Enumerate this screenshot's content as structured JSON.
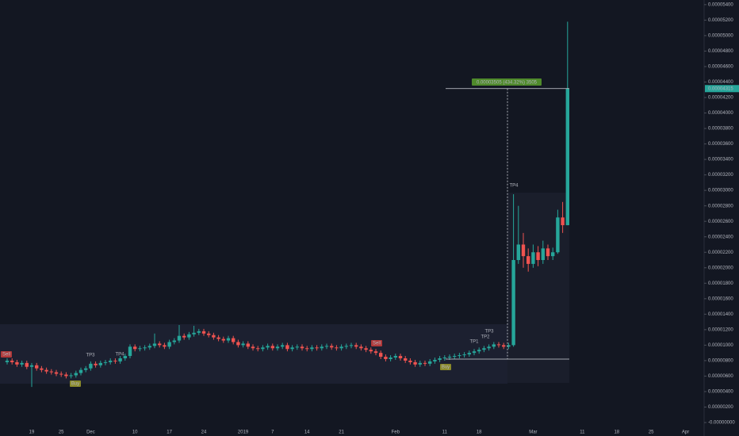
{
  "chart_data": {
    "type": "candlestick",
    "categories": [
      null,
      null,
      null,
      null,
      null,
      "19",
      null,
      null,
      null,
      null,
      null,
      "25",
      null,
      null,
      null,
      null,
      null,
      "Dec",
      null,
      null,
      null,
      null,
      null,
      null,
      null,
      null,
      "10",
      null,
      null,
      null,
      null,
      null,
      null,
      "17",
      null,
      null,
      null,
      null,
      null,
      null,
      "24",
      null,
      null,
      null,
      null,
      null,
      null,
      null,
      "2019",
      null,
      null,
      null,
      null,
      null,
      "7",
      null,
      null,
      null,
      null,
      null,
      null,
      "14",
      null,
      null,
      null,
      null,
      null,
      null,
      "21",
      null,
      null,
      null,
      null,
      null,
      null,
      null,
      null,
      null,
      null,
      "Feb",
      null,
      null,
      null,
      null,
      null,
      null,
      null,
      null,
      null,
      "11",
      null,
      null,
      null,
      null,
      null,
      null,
      "18",
      null,
      null,
      null,
      null,
      null,
      null,
      null,
      null,
      null,
      null,
      "Mar",
      null,
      null,
      null,
      null,
      null,
      null,
      null,
      null,
      null,
      "11",
      null,
      null,
      null,
      null,
      null,
      null,
      "18",
      null,
      null,
      null,
      null,
      null,
      null,
      "25",
      null,
      null,
      null,
      null,
      null,
      null,
      "Apr"
    ],
    "open": [
      7.8e-06,
      8e-06,
      7.8e-06,
      7.5e-06,
      7.7e-06,
      7.2e-06,
      7.4e-06,
      7e-06,
      6.8e-06,
      6.6e-06,
      6.5e-06,
      6.3e-06,
      6.2e-06,
      6e-06,
      6.1e-06,
      6.4e-06,
      6.8e-06,
      7e-06,
      7.6e-06,
      7.4e-06,
      7.7e-06,
      7.8e-06,
      8e-06,
      7.9e-06,
      8.3e-06,
      8.6e-06,
      9.8e-06,
      9.5e-06,
      9.6e-06,
      9.7e-06,
      9.9e-06,
      1.02e-05,
      1e-05,
      9.8e-06,
      1.04e-05,
      1.06e-05,
      1.12e-05,
      1.1e-05,
      1.14e-05,
      1.16e-05,
      1.18e-05,
      1.15e-05,
      1.13e-05,
      1.1e-05,
      1.08e-05,
      1.06e-05,
      1.09e-05,
      1.04e-05,
      1e-05,
      1.02e-05,
      9.8e-06,
      9.6e-06,
      9.5e-06,
      9.7e-06,
      9.9e-06,
      9.6e-06,
      9.8e-06,
      1e-05,
      9.5e-06,
      9.7e-06,
      9.8e-06,
      9.6e-06,
      9.5e-06,
      9.7e-06,
      9.6e-06,
      9.8e-06,
      9.9e-06,
      9.7e-06,
      9.6e-06,
      9.8e-06,
      9.9e-06,
      1e-05,
      9.8e-06,
      9.6e-06,
      9.4e-06,
      9.2e-06,
      9e-06,
      8.5e-06,
      8.2e-06,
      8.4e-06,
      8.6e-06,
      8.3e-06,
      8e-06,
      7.8e-06,
      7.5e-06,
      7.7e-06,
      7.6e-06,
      7.9e-06,
      8.1e-06,
      8.3e-06,
      8.4e-06,
      8.5e-06,
      8.6e-06,
      8.7e-06,
      8.8e-06,
      9e-06,
      9.2e-06,
      9.4e-06,
      9.6e-06,
      9.8e-06,
      1.01e-05,
      1e-05,
      9.8e-06,
      1e-05,
      2.1e-05,
      2.3e-05,
      2.15e-05,
      2.05e-05,
      2.2e-05,
      2.1e-05,
      2.25e-05,
      2.15e-05,
      2.2e-05,
      2.65e-05,
      2.55e-05,
      null,
      null,
      null,
      null,
      null,
      null,
      null,
      null,
      null,
      null,
      null,
      null,
      null,
      null,
      null,
      null,
      null,
      null,
      null,
      null,
      null,
      null,
      null,
      null
    ],
    "high": [
      8.3e-06,
      8.3e-06,
      8.1e-06,
      8e-06,
      8e-06,
      7.7e-06,
      7.7e-06,
      7.3e-06,
      7.1e-06,
      6.9e-06,
      6.8e-06,
      6.6e-06,
      6.5e-06,
      6.4e-06,
      6.7e-06,
      7.1e-06,
      7.3e-06,
      7.9e-06,
      7.9e-06,
      8e-06,
      8.1e-06,
      8.3e-06,
      8.3e-06,
      8.6e-06,
      8.9e-06,
      1.01e-05,
      1.01e-05,
      9.9e-06,
      1e-05,
      1.02e-05,
      1.15e-05,
      1.05e-05,
      1.03e-05,
      1.07e-05,
      1.09e-05,
      1.26e-05,
      1.15e-05,
      1.17e-05,
      1.25e-05,
      1.21e-05,
      1.21e-05,
      1.18e-05,
      1.16e-05,
      1.13e-05,
      1.11e-05,
      1.12e-05,
      1.12e-05,
      1.07e-05,
      1.05e-05,
      1.05e-05,
      1.01e-05,
      9.9e-06,
      1e-05,
      1.02e-05,
      1.02e-05,
      1.01e-05,
      1.03e-05,
      1.03e-05,
      1e-05,
      1.01e-05,
      1.01e-05,
      9.9e-06,
      1e-05,
      1e-05,
      1.01e-05,
      1.02e-05,
      1.02e-05,
      1e-05,
      1.01e-05,
      1.02e-05,
      1.03e-05,
      1.03e-05,
      1.01e-05,
      9.9e-06,
      9.7e-06,
      9.5e-06,
      9.3e-06,
      8.8e-06,
      8.7e-06,
      8.9e-06,
      8.9e-06,
      8.6e-06,
      8.3e-06,
      8.1e-06,
      8e-06,
      8e-06,
      8.2e-06,
      8.4e-06,
      8.6e-06,
      8.7e-06,
      8.8e-06,
      8.9e-06,
      9e-06,
      9.1e-06,
      9.3e-06,
      9.5e-06,
      9.7e-06,
      9.9e-06,
      1.01e-05,
      1.04e-05,
      1.04e-05,
      1.03e-05,
      1.03e-05,
      2.95e-05,
      2.8e-05,
      2.45e-05,
      2.25e-05,
      2.3e-05,
      2.28e-05,
      2.35e-05,
      2.3e-05,
      2.26e-05,
      2.75e-05,
      2.85e-05,
      5.18e-05,
      null,
      null,
      null,
      null,
      null,
      null,
      null,
      null,
      null,
      null,
      null,
      null,
      null,
      null,
      null,
      null,
      null,
      null,
      null,
      null,
      null,
      null,
      null,
      null
    ],
    "low": [
      7.5e-06,
      7.5e-06,
      7.2e-06,
      7.2e-06,
      6.9e-06,
      4.6e-06,
      6.7e-06,
      6.5e-06,
      6.3e-06,
      6.2e-06,
      6e-06,
      5.9e-06,
      5.7e-06,
      5.7e-06,
      5.8e-06,
      6.1e-06,
      6.5e-06,
      6.7e-06,
      7.1e-06,
      7.1e-06,
      7.4e-06,
      7.5e-06,
      7.6e-06,
      7.6e-06,
      8e-06,
      8.3e-06,
      9.2e-06,
      9.2e-06,
      9.3e-06,
      9.4e-06,
      9.6e-06,
      9.7e-06,
      9.5e-06,
      9.5e-06,
      1.01e-05,
      1.03e-05,
      1.07e-05,
      1.07e-05,
      1.11e-05,
      1.13e-05,
      1.12e-05,
      1.1e-05,
      1.07e-05,
      1.05e-05,
      1.03e-05,
      1.03e-05,
      1.01e-05,
      9.7e-06,
      9.7e-06,
      9.5e-06,
      9.3e-06,
      9.2e-06,
      9.2e-06,
      9.4e-06,
      9.3e-06,
      9.3e-06,
      9.5e-06,
      9.2e-06,
      9.2e-06,
      9.4e-06,
      9.3e-06,
      9.2e-06,
      9.2e-06,
      9.3e-06,
      9.3e-06,
      9.5e-06,
      9.4e-06,
      9.3e-06,
      9.3e-06,
      9.5e-06,
      9.6e-06,
      9.5e-06,
      9.3e-06,
      9.1e-06,
      8.9e-06,
      8.7e-06,
      8.2e-06,
      7.9e-06,
      7.9e-06,
      8.1e-06,
      8e-06,
      7.7e-06,
      7.5e-06,
      7.2e-06,
      7.2e-06,
      7.3e-06,
      7.3e-06,
      7.6e-06,
      7.8e-06,
      8e-06,
      8.1e-06,
      8.2e-06,
      8.3e-06,
      8.4e-06,
      8.5e-06,
      8.7e-06,
      8.9e-06,
      9.1e-06,
      9.3e-06,
      9.5e-06,
      9.7e-06,
      9.5e-06,
      9.5e-06,
      9.8e-06,
      2.05e-05,
      2e-05,
      1.95e-05,
      2e-05,
      2.02e-05,
      2.05e-05,
      2.1e-05,
      2.1e-05,
      2.18e-05,
      2.45e-05,
      2.55e-05,
      null,
      null,
      null,
      null,
      null,
      null,
      null,
      null,
      null,
      null,
      null,
      null,
      null,
      null,
      null,
      null,
      null,
      null,
      null,
      null,
      null,
      null,
      null,
      null
    ],
    "close": [
      8e-06,
      7.8e-06,
      7.5e-06,
      7.7e-06,
      7.2e-06,
      7.4e-06,
      7e-06,
      6.8e-06,
      6.6e-06,
      6.5e-06,
      6.3e-06,
      6.2e-06,
      6e-06,
      6.1e-06,
      6.4e-06,
      6.8e-06,
      7e-06,
      7.6e-06,
      7.4e-06,
      7.7e-06,
      7.8e-06,
      8e-06,
      7.9e-06,
      8.3e-06,
      8.6e-06,
      9.8e-06,
      9.5e-06,
      9.6e-06,
      9.7e-06,
      9.9e-06,
      1.02e-05,
      1e-05,
      9.8e-06,
      1.04e-05,
      1.06e-05,
      1.12e-05,
      1.1e-05,
      1.14e-05,
      1.16e-05,
      1.18e-05,
      1.15e-05,
      1.13e-05,
      1.1e-05,
      1.08e-05,
      1.06e-05,
      1.09e-05,
      1.04e-05,
      1e-05,
      1.02e-05,
      9.8e-06,
      9.6e-06,
      9.5e-06,
      9.7e-06,
      9.9e-06,
      9.6e-06,
      9.8e-06,
      1e-05,
      9.5e-06,
      9.7e-06,
      9.8e-06,
      9.6e-06,
      9.5e-06,
      9.7e-06,
      9.6e-06,
      9.8e-06,
      9.9e-06,
      9.7e-06,
      9.6e-06,
      9.8e-06,
      9.9e-06,
      1e-05,
      9.8e-06,
      9.6e-06,
      9.4e-06,
      9.2e-06,
      9e-06,
      8.5e-06,
      8.2e-06,
      8.4e-06,
      8.6e-06,
      8.3e-06,
      8e-06,
      7.8e-06,
      7.5e-06,
      7.7e-06,
      7.6e-06,
      7.9e-06,
      8.1e-06,
      8.3e-06,
      8.4e-06,
      8.5e-06,
      8.6e-06,
      8.7e-06,
      8.8e-06,
      9e-06,
      9.2e-06,
      9.4e-06,
      9.6e-06,
      9.8e-06,
      1.01e-05,
      1e-05,
      9.8e-06,
      1e-05,
      2.1e-05,
      2.3e-05,
      2.15e-05,
      2.05e-05,
      2.2e-05,
      2.1e-05,
      2.25e-05,
      2.15e-05,
      2.2e-05,
      2.65e-05,
      2.55e-05,
      4.315e-05,
      null,
      null,
      null,
      null,
      null,
      null,
      null,
      null,
      null,
      null,
      null,
      null,
      null,
      null,
      null,
      null,
      null,
      null,
      null,
      null,
      null,
      null,
      null,
      null
    ],
    "up_color": "#26a69a",
    "down_color": "#ef5350",
    "ylim": [
      -1.74e-06,
      5.46e-05
    ],
    "yticks": [
      {
        "value": 5.4e-05,
        "label": "0.00005400"
      },
      {
        "value": 5.2e-05,
        "label": "0.00005200"
      },
      {
        "value": 5e-05,
        "label": "0.00005000"
      },
      {
        "value": 4.8e-05,
        "label": "0.00004800"
      },
      {
        "value": 4.6e-05,
        "label": "0.00004600"
      },
      {
        "value": 4.4e-05,
        "label": "0.00004400"
      },
      {
        "value": 4.2e-05,
        "label": "0.00004200"
      },
      {
        "value": 4e-05,
        "label": "0.00004000"
      },
      {
        "value": 3.8e-05,
        "label": "0.00003800"
      },
      {
        "value": 3.6e-05,
        "label": "0.00003600"
      },
      {
        "value": 3.4e-05,
        "label": "0.00003400"
      },
      {
        "value": 3.2e-05,
        "label": "0.00003200"
      },
      {
        "value": 3e-05,
        "label": "0.00003000"
      },
      {
        "value": 2.8e-05,
        "label": "0.00002800"
      },
      {
        "value": 2.6e-05,
        "label": "0.00002600"
      },
      {
        "value": 2.4e-05,
        "label": "0.00002400"
      },
      {
        "value": 2.2e-05,
        "label": "0.00002200"
      },
      {
        "value": 2e-05,
        "label": "0.00002000"
      },
      {
        "value": 1.8e-05,
        "label": "0.00001800"
      },
      {
        "value": 1.6e-05,
        "label": "0.00001600"
      },
      {
        "value": 1.4e-05,
        "label": "0.00001400"
      },
      {
        "value": 1.2e-05,
        "label": "0.00001200"
      },
      {
        "value": 1e-05,
        "label": "0.00001000"
      },
      {
        "value": 8e-06,
        "label": "0.00000800"
      },
      {
        "value": 6e-06,
        "label": "0.00000600"
      },
      {
        "value": 4e-06,
        "label": "0.00000400"
      },
      {
        "value": 2e-06,
        "label": "0.00000200"
      },
      {
        "value": 0,
        "label": "-0.00000000"
      }
    ],
    "last_price": {
      "value": 4.315e-05,
      "label": "0.00004315"
    },
    "measure": "0.00003505 (434.32%) 3505",
    "annotations": [
      "Sell",
      "Buy",
      "TP3",
      "TP4",
      "Sell",
      "Buy",
      "TP1",
      "TP2",
      "TP3",
      "TP4"
    ]
  }
}
